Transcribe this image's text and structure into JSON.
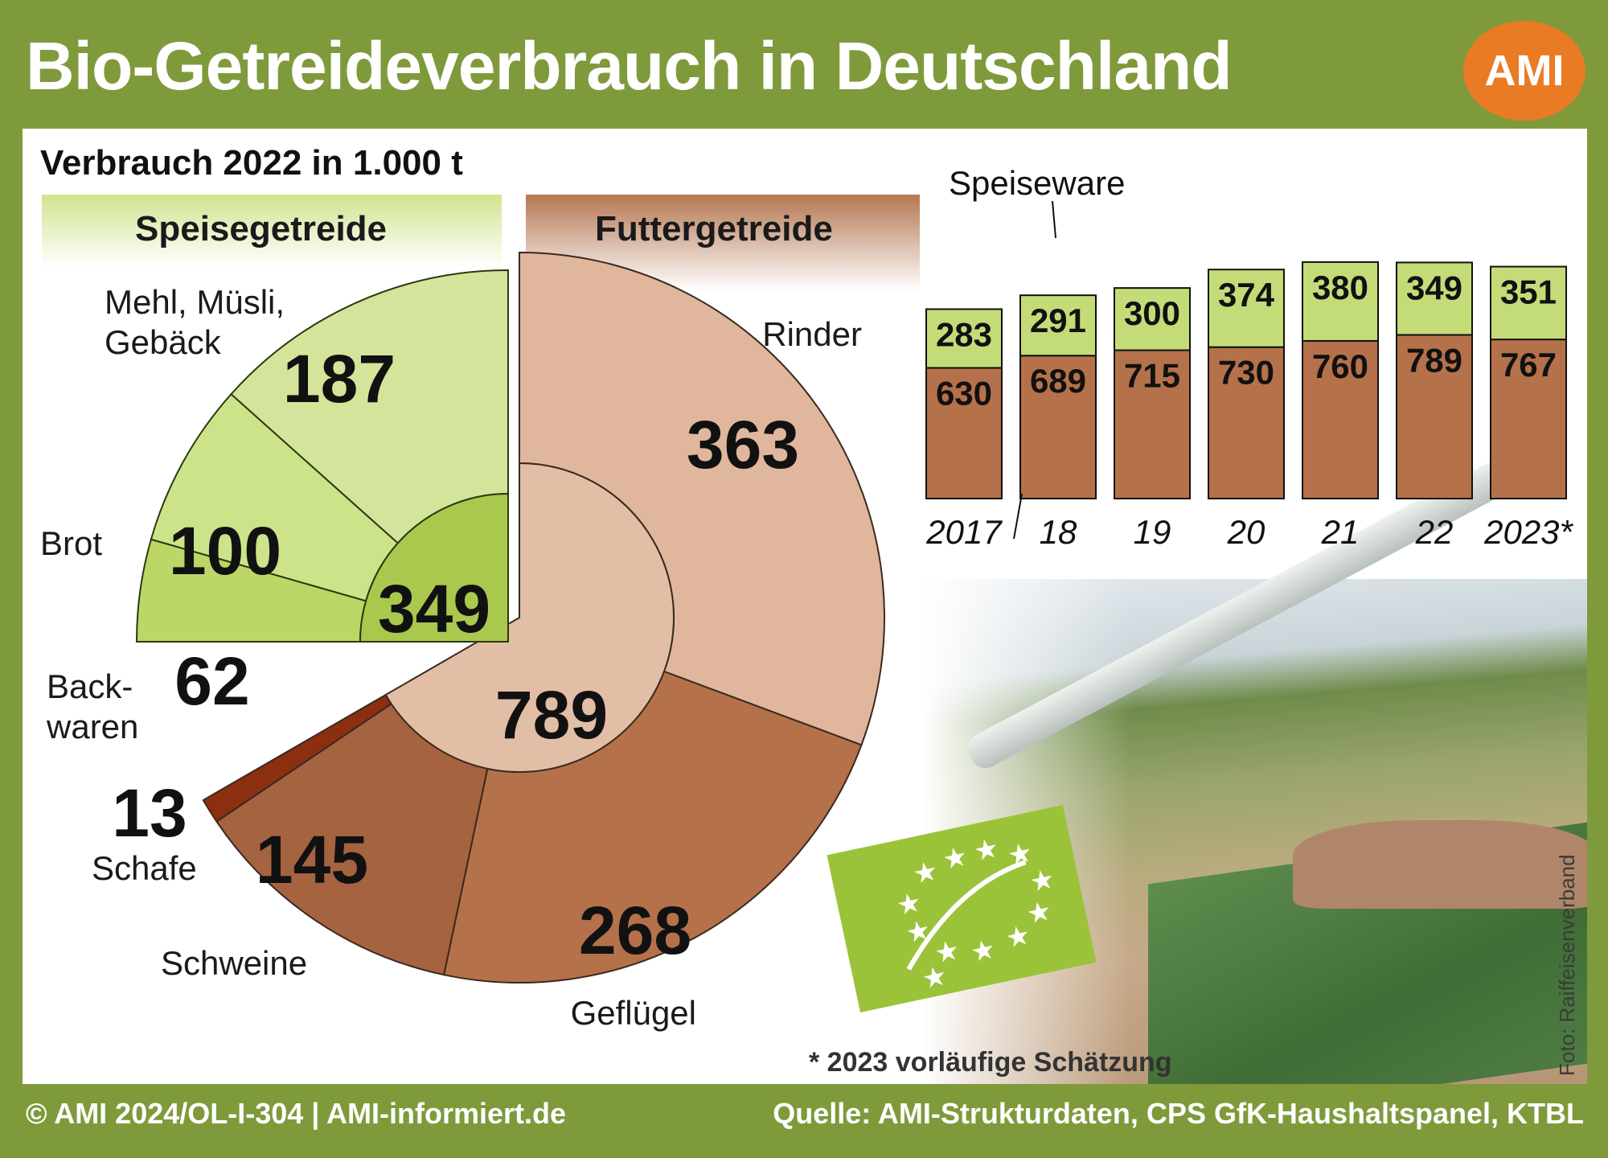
{
  "title": "Bio-Getreideverbrauch in Deutschland",
  "logo_text": "AMI",
  "subtitle": "Verbrauch 2022 in 1.000 t",
  "groups": {
    "speise": "Speisegetreide",
    "futter": "Futtergetreide"
  },
  "footnote": "* 2023 vorläufige Schätzung",
  "photo_credit": "Foto: Raiffeisenverband",
  "footer": {
    "left": "© AMI 2024/OL-I-304 | AMI-informiert.de",
    "right": "Quelle: AMI-Strukturdaten, CPS GfK-Haushaltspanel, KTBL"
  },
  "colors": {
    "background": "#7f9a3b",
    "speise_light": "#d4e49a",
    "speise_mid": "#c4dc77",
    "speise_dark": "#a9c84d",
    "futter_light": "#e0b69c",
    "futter_mid": "#b5714a",
    "futter_dark": "#a6633f",
    "futter_darkest": "#8b2f10",
    "logo": "#e97b25"
  },
  "chart_data": [
    {
      "type": "pie",
      "title": "Verbrauch 2022 in 1.000 t",
      "groups": [
        {
          "name": "Speisegetreide",
          "total": 349,
          "slices": [
            {
              "label": "Mehl, Müsli, Gebäck",
              "value": 187
            },
            {
              "label": "Brot",
              "value": 100
            },
            {
              "label": "Back-waren",
              "value": 62
            }
          ]
        },
        {
          "name": "Futtergetreide",
          "total": 789,
          "slices": [
            {
              "label": "Rinder",
              "value": 363
            },
            {
              "label": "Geflügel",
              "value": 268
            },
            {
              "label": "Schweine",
              "value": 145
            },
            {
              "label": "Schafe",
              "value": 13
            }
          ]
        }
      ]
    },
    {
      "type": "bar",
      "stacked": true,
      "categories": [
        "2017",
        "18",
        "19",
        "20",
        "21",
        "22",
        "2023*"
      ],
      "series": [
        {
          "name": "Futtergetreide",
          "values": [
            630,
            689,
            715,
            730,
            760,
            789,
            767
          ]
        },
        {
          "name": "Speiseware",
          "values": [
            283,
            291,
            300,
            374,
            380,
            349,
            351
          ]
        }
      ]
    }
  ]
}
